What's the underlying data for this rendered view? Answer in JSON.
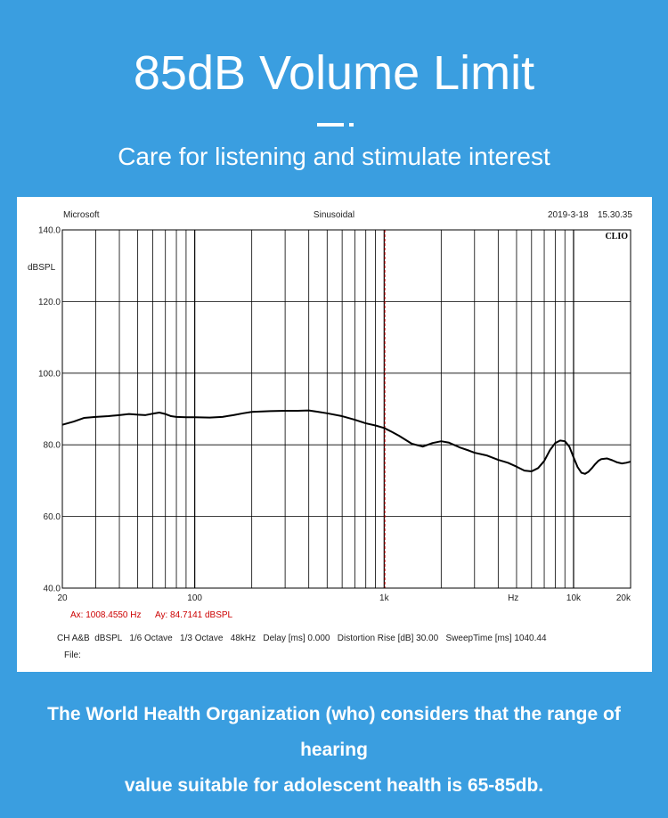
{
  "header": {
    "title": "85dB Volume Limit",
    "subtitle": "Care for listening and stimulate interest"
  },
  "footer": {
    "line1": "The World Health Organization (who) considers that the range of hearing",
    "line2": "value suitable for adolescent health is 65-85db."
  },
  "chart_data": {
    "type": "line",
    "header_left": "Microsoft",
    "header_center": "Sinusoidal",
    "header_date": "2019-3-18",
    "header_time": "15.30.35",
    "brand": "CLIO",
    "ylabel": "dBSPL",
    "xscale": "log",
    "xlim": [
      20,
      20000
    ],
    "ylim": [
      40,
      140
    ],
    "grid": true,
    "y_ticks": [
      "140.0",
      "120.0",
      "100.0",
      "80.0",
      "60.0",
      "40.0"
    ],
    "y_tick_values": [
      140,
      120,
      100,
      80,
      60,
      40
    ],
    "x_ticks": [
      {
        "value": 20,
        "label": "20"
      },
      {
        "value": 100,
        "label": "100"
      },
      {
        "value": 1000,
        "label": "1k"
      },
      {
        "value": 4800,
        "label": "Hz"
      },
      {
        "value": 10000,
        "label": "10k"
      },
      {
        "value": 20000,
        "label": "20k"
      }
    ],
    "cursor": {
      "x": 1008.455,
      "y": 84.7141
    },
    "cursor_readout": {
      "ax": "Ax: 1008.4550 Hz",
      "ay": "Ay: 84.7141 dBSPL"
    },
    "settings_line": "CH A&B  dBSPL   1/6 Octave   1/3 Octave   48kHz   Delay [ms] 0.000   Distortion Rise [dB] 30.00   SweepTime [ms] 1040.44",
    "file_label": "File:",
    "colors": {
      "curve": "#000000",
      "grid": "#000000",
      "cursor": "#cc0000",
      "readout": "#cc0000"
    },
    "series": [
      {
        "x": [
          20,
          23,
          26,
          30,
          35,
          40,
          45,
          50,
          55,
          60,
          65,
          70,
          75,
          80,
          90,
          100,
          120,
          140,
          160,
          180,
          200,
          250,
          300,
          350,
          400,
          450,
          500,
          600,
          700,
          800,
          900,
          1000,
          1100,
          1200,
          1400,
          1600,
          1800,
          2000,
          2200,
          2500,
          2800,
          3000,
          3500,
          4000,
          4500,
          5000,
          5500,
          6000,
          6500,
          7000,
          7500,
          8000,
          8500,
          9000,
          9500,
          10000,
          10500,
          11000,
          11500,
          12000,
          12500,
          13000,
          13500,
          14000,
          15000,
          16000,
          17000,
          18000,
          19000,
          20000
        ],
        "y": [
          85.6,
          86.5,
          87.5,
          87.8,
          88.0,
          88.3,
          88.6,
          88.4,
          88.3,
          88.7,
          89.0,
          88.6,
          88.0,
          87.8,
          87.7,
          87.7,
          87.6,
          87.8,
          88.3,
          88.8,
          89.2,
          89.4,
          89.5,
          89.5,
          89.6,
          89.2,
          88.8,
          88.0,
          87.0,
          86.0,
          85.4,
          84.7,
          83.6,
          82.5,
          80.3,
          79.5,
          80.5,
          81.0,
          80.6,
          79.3,
          78.4,
          77.8,
          77.0,
          75.8,
          75.0,
          73.9,
          72.8,
          72.6,
          73.5,
          75.5,
          78.5,
          80.5,
          81.2,
          81.0,
          79.5,
          76.5,
          73.8,
          72.2,
          71.9,
          72.5,
          73.5,
          74.6,
          75.5,
          76.0,
          76.2,
          75.7,
          75.1,
          74.8,
          75.0,
          75.3
        ]
      }
    ]
  }
}
